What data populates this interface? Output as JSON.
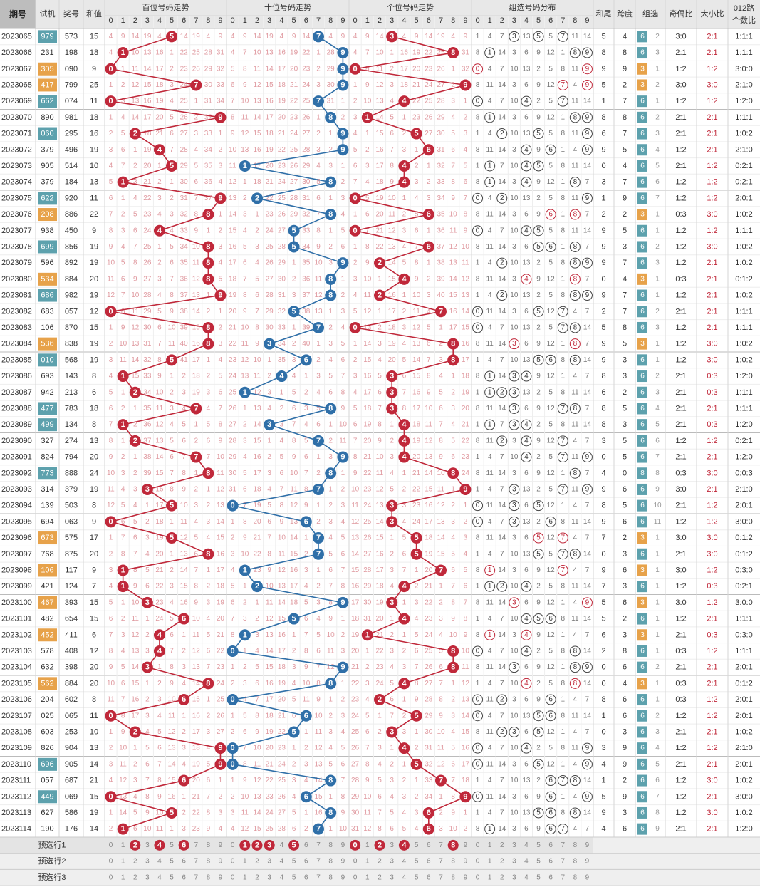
{
  "header": {
    "period": "期号",
    "trial": "试机",
    "prize": "奖号",
    "sum": "和值",
    "hundreds": "百位号码走势",
    "tens": "十位号码走势",
    "units": "个位号码走势",
    "group_dist": "组选号码分布",
    "tail": "和尾",
    "span": "跨度",
    "group": "组选",
    "odd_even": "奇偶比",
    "big_small": "大小比",
    "route_line1": "012路",
    "route_line2": "个数比",
    "digits": [
      "0",
      "1",
      "2",
      "3",
      "4",
      "5",
      "6",
      "7",
      "8",
      "9"
    ]
  },
  "rows": [
    {
      "p": "2023065",
      "t": "979",
      "tc": "b",
      "w": "573",
      "s": "15",
      "tail": "5",
      "span": "4",
      "gt": "6",
      "gn": "2",
      "oe": "3:0",
      "bs": "2:1",
      "r": "1:1:1"
    },
    {
      "p": "2023066",
      "t": "231",
      "tc": "",
      "w": "198",
      "s": "18",
      "tail": "8",
      "span": "8",
      "gt": "6",
      "gn": "3",
      "oe": "2:1",
      "bs": "2:1",
      "r": "1:1:1"
    },
    {
      "p": "2023067",
      "t": "305",
      "tc": "o",
      "w": "090",
      "s": "9",
      "tail": "9",
      "span": "9",
      "gt": "3",
      "gn": "1",
      "oe": "1:2",
      "bs": "1:2",
      "r": "3:0:0"
    },
    {
      "p": "2023068",
      "t": "417",
      "tc": "o",
      "w": "799",
      "s": "25",
      "tail": "5",
      "span": "2",
      "gt": "3",
      "gn": "2",
      "oe": "3:0",
      "bs": "3:0",
      "r": "2:1:0"
    },
    {
      "p": "2023069",
      "t": "662",
      "tc": "b",
      "w": "074",
      "s": "11",
      "tail": "1",
      "span": "7",
      "gt": "6",
      "gn": "1",
      "oe": "1:2",
      "bs": "1:2",
      "r": "1:2:0"
    },
    {
      "p": "2023070",
      "t": "890",
      "tc": "",
      "w": "981",
      "s": "18",
      "tail": "8",
      "span": "8",
      "gt": "6",
      "gn": "2",
      "oe": "2:1",
      "bs": "2:1",
      "r": "1:1:1"
    },
    {
      "p": "2023071",
      "t": "060",
      "tc": "b",
      "w": "295",
      "s": "16",
      "tail": "6",
      "span": "7",
      "gt": "6",
      "gn": "3",
      "oe": "2:1",
      "bs": "2:1",
      "r": "1:0:2"
    },
    {
      "p": "2023072",
      "t": "379",
      "tc": "",
      "w": "496",
      "s": "19",
      "tail": "9",
      "span": "5",
      "gt": "6",
      "gn": "4",
      "oe": "1:2",
      "bs": "2:1",
      "r": "2:1:0"
    },
    {
      "p": "2023073",
      "t": "905",
      "tc": "",
      "w": "514",
      "s": "10",
      "tail": "0",
      "span": "4",
      "gt": "6",
      "gn": "5",
      "oe": "2:1",
      "bs": "1:2",
      "r": "0:2:1"
    },
    {
      "p": "2023074",
      "t": "379",
      "tc": "",
      "w": "184",
      "s": "13",
      "tail": "3",
      "span": "7",
      "gt": "6",
      "gn": "6",
      "oe": "1:2",
      "bs": "1:2",
      "r": "0:2:1"
    },
    {
      "p": "2023075",
      "t": "622",
      "tc": "b",
      "w": "920",
      "s": "11",
      "tail": "1",
      "span": "9",
      "gt": "6",
      "gn": "7",
      "oe": "1:2",
      "bs": "1:2",
      "r": "2:0:1"
    },
    {
      "p": "2023076",
      "t": "208",
      "tc": "o",
      "w": "886",
      "s": "22",
      "tail": "2",
      "span": "2",
      "gt": "3",
      "gn": "1",
      "oe": "0:3",
      "bs": "3:0",
      "r": "1:0:2"
    },
    {
      "p": "2023077",
      "t": "938",
      "tc": "",
      "w": "450",
      "s": "9",
      "tail": "9",
      "span": "5",
      "gt": "6",
      "gn": "1",
      "oe": "1:2",
      "bs": "1:2",
      "r": "1:1:1"
    },
    {
      "p": "2023078",
      "t": "699",
      "tc": "b",
      "w": "856",
      "s": "19",
      "tail": "9",
      "span": "3",
      "gt": "6",
      "gn": "2",
      "oe": "1:2",
      "bs": "3:0",
      "r": "1:0:2"
    },
    {
      "p": "2023079",
      "t": "596",
      "tc": "",
      "w": "892",
      "s": "19",
      "tail": "9",
      "span": "7",
      "gt": "6",
      "gn": "3",
      "oe": "1:2",
      "bs": "2:1",
      "r": "1:0:2"
    },
    {
      "p": "2023080",
      "t": "534",
      "tc": "o",
      "w": "884",
      "s": "20",
      "tail": "0",
      "span": "4",
      "gt": "3",
      "gn": "1",
      "oe": "0:3",
      "bs": "2:1",
      "r": "0:1:2"
    },
    {
      "p": "2023081",
      "t": "686",
      "tc": "b",
      "w": "982",
      "s": "19",
      "tail": "9",
      "span": "7",
      "gt": "6",
      "gn": "1",
      "oe": "1:2",
      "bs": "2:1",
      "r": "1:0:2"
    },
    {
      "p": "2023082",
      "t": "683",
      "tc": "",
      "w": "057",
      "s": "12",
      "tail": "2",
      "span": "7",
      "gt": "6",
      "gn": "2",
      "oe": "2:1",
      "bs": "2:1",
      "r": "1:1:1"
    },
    {
      "p": "2023083",
      "t": "106",
      "tc": "",
      "w": "870",
      "s": "15",
      "tail": "5",
      "span": "8",
      "gt": "6",
      "gn": "3",
      "oe": "1:2",
      "bs": "2:1",
      "r": "1:1:1"
    },
    {
      "p": "2023084",
      "t": "536",
      "tc": "o",
      "w": "838",
      "s": "19",
      "tail": "9",
      "span": "5",
      "gt": "3",
      "gn": "1",
      "oe": "1:2",
      "bs": "3:0",
      "r": "1:0:2"
    },
    {
      "p": "2023085",
      "t": "010",
      "tc": "b",
      "w": "568",
      "s": "19",
      "tail": "9",
      "span": "3",
      "gt": "6",
      "gn": "1",
      "oe": "1:2",
      "bs": "3:0",
      "r": "1:0:2"
    },
    {
      "p": "2023086",
      "t": "693",
      "tc": "",
      "w": "143",
      "s": "8",
      "tail": "8",
      "span": "3",
      "gt": "6",
      "gn": "2",
      "oe": "2:1",
      "bs": "0:3",
      "r": "1:2:0"
    },
    {
      "p": "2023087",
      "t": "942",
      "tc": "",
      "w": "213",
      "s": "6",
      "tail": "6",
      "span": "2",
      "gt": "6",
      "gn": "3",
      "oe": "2:1",
      "bs": "0:3",
      "r": "1:1:1"
    },
    {
      "p": "2023088",
      "t": "477",
      "tc": "b",
      "w": "783",
      "s": "18",
      "tail": "8",
      "span": "5",
      "gt": "6",
      "gn": "4",
      "oe": "2:1",
      "bs": "2:1",
      "r": "1:1:1"
    },
    {
      "p": "2023089",
      "t": "499",
      "tc": "b",
      "w": "134",
      "s": "8",
      "tail": "8",
      "span": "3",
      "gt": "6",
      "gn": "5",
      "oe": "2:1",
      "bs": "0:3",
      "r": "1:2:0"
    },
    {
      "p": "2023090",
      "t": "327",
      "tc": "",
      "w": "274",
      "s": "13",
      "tail": "3",
      "span": "5",
      "gt": "6",
      "gn": "6",
      "oe": "1:2",
      "bs": "1:2",
      "r": "0:2:1"
    },
    {
      "p": "2023091",
      "t": "824",
      "tc": "",
      "w": "794",
      "s": "20",
      "tail": "0",
      "span": "5",
      "gt": "6",
      "gn": "7",
      "oe": "2:1",
      "bs": "2:1",
      "r": "1:2:0"
    },
    {
      "p": "2023092",
      "t": "773",
      "tc": "b",
      "w": "888",
      "s": "24",
      "tail": "4",
      "span": "0",
      "gt": "8",
      "gn": "8",
      "oe": "0:3",
      "bs": "3:0",
      "r": "0:0:3"
    },
    {
      "p": "2023093",
      "t": "314",
      "tc": "",
      "w": "379",
      "s": "19",
      "tail": "9",
      "span": "6",
      "gt": "6",
      "gn": "9",
      "oe": "3:0",
      "bs": "2:1",
      "r": "2:1:0"
    },
    {
      "p": "2023094",
      "t": "139",
      "tc": "",
      "w": "503",
      "s": "8",
      "tail": "8",
      "span": "5",
      "gt": "6",
      "gn": "10",
      "oe": "2:1",
      "bs": "1:2",
      "r": "2:0:1"
    },
    {
      "p": "2023095",
      "t": "694",
      "tc": "",
      "w": "063",
      "s": "9",
      "tail": "9",
      "span": "6",
      "gt": "6",
      "gn": "11",
      "oe": "1:2",
      "bs": "1:2",
      "r": "3:0:0"
    },
    {
      "p": "2023096",
      "t": "673",
      "tc": "o",
      "w": "575",
      "s": "17",
      "tail": "7",
      "span": "2",
      "gt": "3",
      "gn": "1",
      "oe": "3:0",
      "bs": "3:0",
      "r": "0:1:2"
    },
    {
      "p": "2023097",
      "t": "768",
      "tc": "",
      "w": "875",
      "s": "20",
      "tail": "0",
      "span": "3",
      "gt": "6",
      "gn": "1",
      "oe": "2:1",
      "bs": "3:0",
      "r": "0:1:2"
    },
    {
      "p": "2023098",
      "t": "106",
      "tc": "o",
      "w": "117",
      "s": "9",
      "tail": "9",
      "span": "6",
      "gt": "3",
      "gn": "1",
      "oe": "3:0",
      "bs": "1:2",
      "r": "0:3:0"
    },
    {
      "p": "2023099",
      "t": "421",
      "tc": "",
      "w": "124",
      "s": "7",
      "tail": "7",
      "span": "3",
      "gt": "6",
      "gn": "1",
      "oe": "1:2",
      "bs": "0:3",
      "r": "0:2:1"
    },
    {
      "p": "2023100",
      "t": "467",
      "tc": "o",
      "w": "393",
      "s": "15",
      "tail": "5",
      "span": "6",
      "gt": "3",
      "gn": "1",
      "oe": "3:0",
      "bs": "1:2",
      "r": "3:0:0"
    },
    {
      "p": "2023101",
      "t": "482",
      "tc": "",
      "w": "654",
      "s": "15",
      "tail": "5",
      "span": "2",
      "gt": "6",
      "gn": "1",
      "oe": "1:2",
      "bs": "2:1",
      "r": "1:1:1"
    },
    {
      "p": "2023102",
      "t": "452",
      "tc": "o",
      "w": "411",
      "s": "6",
      "tail": "6",
      "span": "3",
      "gt": "3",
      "gn": "1",
      "oe": "2:1",
      "bs": "0:3",
      "r": "0:3:0"
    },
    {
      "p": "2023103",
      "t": "578",
      "tc": "",
      "w": "408",
      "s": "12",
      "tail": "2",
      "span": "8",
      "gt": "6",
      "gn": "1",
      "oe": "0:3",
      "bs": "1:2",
      "r": "1:1:1"
    },
    {
      "p": "2023104",
      "t": "632",
      "tc": "",
      "w": "398",
      "s": "20",
      "tail": "0",
      "span": "6",
      "gt": "6",
      "gn": "2",
      "oe": "2:1",
      "bs": "2:1",
      "r": "2:0:1"
    },
    {
      "p": "2023105",
      "t": "562",
      "tc": "o",
      "w": "884",
      "s": "20",
      "tail": "0",
      "span": "4",
      "gt": "3",
      "gn": "1",
      "oe": "0:3",
      "bs": "2:1",
      "r": "0:1:2"
    },
    {
      "p": "2023106",
      "t": "204",
      "tc": "",
      "w": "602",
      "s": "8",
      "tail": "8",
      "span": "6",
      "gt": "6",
      "gn": "1",
      "oe": "0:3",
      "bs": "1:2",
      "r": "2:0:1"
    },
    {
      "p": "2023107",
      "t": "025",
      "tc": "",
      "w": "065",
      "s": "11",
      "tail": "1",
      "span": "6",
      "gt": "6",
      "gn": "2",
      "oe": "1:2",
      "bs": "1:2",
      "r": "2:0:1"
    },
    {
      "p": "2023108",
      "t": "603",
      "tc": "",
      "w": "253",
      "s": "10",
      "tail": "0",
      "span": "3",
      "gt": "6",
      "gn": "3",
      "oe": "2:1",
      "bs": "2:1",
      "r": "1:0:2"
    },
    {
      "p": "2023109",
      "t": "826",
      "tc": "",
      "w": "904",
      "s": "13",
      "tail": "3",
      "span": "9",
      "gt": "6",
      "gn": "4",
      "oe": "1:2",
      "bs": "1:2",
      "r": "2:1:0"
    },
    {
      "p": "2023110",
      "t": "696",
      "tc": "b",
      "w": "905",
      "s": "14",
      "tail": "4",
      "span": "9",
      "gt": "6",
      "gn": "5",
      "oe": "2:1",
      "bs": "2:1",
      "r": "2:0:1"
    },
    {
      "p": "2023111",
      "t": "057",
      "tc": "",
      "w": "687",
      "s": "21",
      "tail": "1",
      "span": "2",
      "gt": "6",
      "gn": "6",
      "oe": "1:2",
      "bs": "3:0",
      "r": "1:0:2"
    },
    {
      "p": "2023112",
      "t": "449",
      "tc": "b",
      "w": "069",
      "s": "15",
      "tail": "5",
      "span": "9",
      "gt": "6",
      "gn": "7",
      "oe": "1:2",
      "bs": "2:1",
      "r": "3:0:0"
    },
    {
      "p": "2023113",
      "t": "627",
      "tc": "",
      "w": "586",
      "s": "19",
      "tail": "9",
      "span": "3",
      "gt": "6",
      "gn": "8",
      "oe": "1:2",
      "bs": "3:0",
      "r": "1:0:2"
    },
    {
      "p": "2023114",
      "t": "190",
      "tc": "",
      "w": "176",
      "s": "14",
      "tail": "4",
      "span": "6",
      "gt": "6",
      "gn": "9",
      "oe": "2:1",
      "bs": "2:1",
      "r": "1:2:0"
    }
  ],
  "forecast": [
    {
      "label": "预选行1",
      "h": [
        2,
        4,
        6
      ],
      "t": [
        1,
        2,
        3,
        5
      ],
      "u": [
        0,
        2,
        4,
        8
      ]
    },
    {
      "label": "预选行2",
      "h": [],
      "t": [],
      "u": []
    },
    {
      "label": "预选行3",
      "h": [],
      "t": [],
      "u": []
    }
  ],
  "colors": {
    "red": "#c0283a",
    "blue": "#2f6fa8",
    "miss": "#e09aa0",
    "teal": "#5da1ad",
    "orange": "#e7a24a",
    "header_bg": "#e8e8e8",
    "grid": "#d6d6d6"
  },
  "chart_data": {
    "type": "table",
    "title": "",
    "note": "Winning numbers per period with per-digit trend lines (hundreds, tens, units)",
    "x": [
      "2023065",
      "2023066",
      "2023067",
      "2023068",
      "2023069",
      "2023070",
      "2023071",
      "2023072",
      "2023073",
      "2023074",
      "2023075",
      "2023076",
      "2023077",
      "2023078",
      "2023079",
      "2023080",
      "2023081",
      "2023082",
      "2023083",
      "2023084",
      "2023085",
      "2023086",
      "2023087",
      "2023088",
      "2023089",
      "2023090",
      "2023091",
      "2023092",
      "2023093",
      "2023094",
      "2023095",
      "2023096",
      "2023097",
      "2023098",
      "2023099",
      "2023100",
      "2023101",
      "2023102",
      "2023103",
      "2023104",
      "2023105",
      "2023106",
      "2023107",
      "2023108",
      "2023109",
      "2023110",
      "2023111",
      "2023112",
      "2023113",
      "2023114"
    ],
    "series": [
      {
        "name": "百位号码走势",
        "values": [
          5,
          1,
          0,
          7,
          0,
          9,
          2,
          4,
          5,
          1,
          9,
          8,
          4,
          8,
          8,
          8,
          9,
          0,
          8,
          8,
          5,
          1,
          2,
          7,
          1,
          2,
          7,
          8,
          3,
          5,
          0,
          5,
          8,
          1,
          1,
          3,
          6,
          4,
          4,
          3,
          8,
          6,
          0,
          2,
          9,
          9,
          6,
          0,
          5,
          1
        ]
      },
      {
        "name": "十位号码走势",
        "values": [
          7,
          9,
          9,
          9,
          7,
          8,
          9,
          9,
          1,
          8,
          2,
          8,
          5,
          5,
          9,
          8,
          8,
          5,
          7,
          3,
          6,
          4,
          1,
          8,
          3,
          7,
          9,
          8,
          7,
          0,
          6,
          7,
          7,
          1,
          2,
          9,
          5,
          1,
          0,
          9,
          8,
          0,
          6,
          5,
          0,
          0,
          8,
          6,
          8,
          7
        ]
      },
      {
        "name": "个位号码走势",
        "values": [
          3,
          8,
          0,
          9,
          4,
          1,
          5,
          6,
          4,
          4,
          0,
          6,
          0,
          6,
          2,
          4,
          2,
          7,
          0,
          8,
          8,
          3,
          3,
          3,
          4,
          4,
          4,
          8,
          9,
          3,
          3,
          5,
          5,
          7,
          4,
          3,
          4,
          1,
          8,
          8,
          4,
          2,
          5,
          3,
          4,
          5,
          7,
          9,
          6,
          6
        ]
      }
    ],
    "ylim": [
      0,
      9
    ]
  }
}
